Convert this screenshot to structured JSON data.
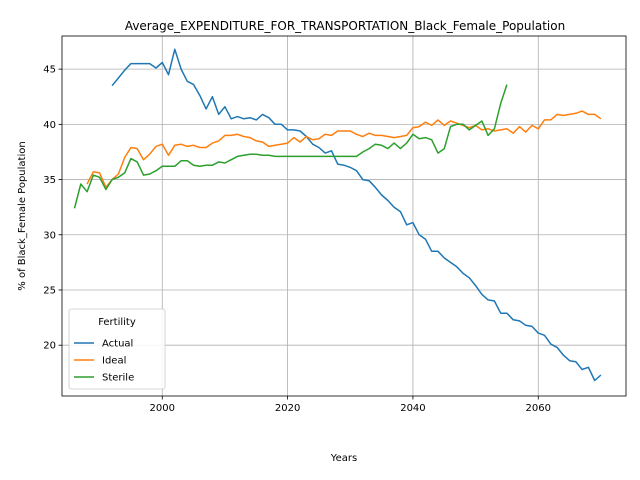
{
  "chart_data": {
    "type": "line",
    "title": "Average_EXPENDITURE_FOR_TRANSPORTATION_Black_Female_Population",
    "xlabel": "Years",
    "ylabel": "% of Black_Female Population",
    "xlim": [
      1984,
      2074
    ],
    "ylim": [
      15.4,
      48.0
    ],
    "xticks": [
      2000,
      2020,
      2040,
      2060
    ],
    "yticks": [
      20,
      25,
      30,
      35,
      40,
      45
    ],
    "grid": true,
    "legend": {
      "title": "Fertility",
      "position": "lower-left"
    },
    "series": [
      {
        "name": "Actual",
        "color": "#1f77b4",
        "x": [
          1992,
          1993,
          1994,
          1995,
          1996,
          1997,
          1998,
          1999,
          2000,
          2001,
          2002,
          2003,
          2004,
          2005,
          2006,
          2007,
          2008,
          2009,
          2010,
          2011,
          2012,
          2013,
          2014,
          2015,
          2016,
          2017,
          2018,
          2019,
          2020,
          2021,
          2022,
          2023,
          2024,
          2025,
          2026,
          2027,
          2028,
          2029,
          2030,
          2031,
          2032,
          2033,
          2034,
          2035,
          2036,
          2037,
          2038,
          2039,
          2040,
          2041,
          2042,
          2043,
          2044,
          2045,
          2046,
          2047,
          2048,
          2049,
          2050,
          2051,
          2052,
          2053,
          2054,
          2055,
          2056,
          2057,
          2058,
          2059,
          2060,
          2061,
          2062,
          2063,
          2064,
          2065,
          2066,
          2067,
          2068,
          2069,
          2070
        ],
        "y": [
          43.5,
          44.2,
          44.9,
          45.5,
          45.5,
          45.5,
          45.5,
          45.1,
          45.6,
          44.5,
          46.8,
          45.0,
          43.9,
          43.6,
          42.6,
          41.4,
          42.5,
          40.9,
          41.6,
          40.5,
          40.7,
          40.5,
          40.6,
          40.4,
          40.9,
          40.6,
          40.0,
          40.0,
          39.5,
          39.5,
          39.4,
          38.9,
          38.2,
          37.9,
          37.4,
          37.6,
          36.4,
          36.3,
          36.1,
          35.8,
          35.0,
          34.9,
          34.3,
          33.6,
          33.1,
          32.5,
          32.1,
          30.9,
          31.1,
          30.0,
          29.6,
          28.5,
          28.5,
          27.9,
          27.5,
          27.1,
          26.5,
          26.1,
          25.4,
          24.6,
          24.1,
          24.0,
          22.9,
          22.9,
          22.3,
          22.2,
          21.8,
          21.7,
          21.1,
          20.9,
          20.1,
          19.8,
          19.1,
          18.6,
          18.5,
          17.8,
          18.0,
          16.8,
          17.3
        ]
      },
      {
        "name": "Ideal",
        "color": "#ff7f0e",
        "x": [
          1988,
          1989,
          1990,
          1991,
          1992,
          1993,
          1994,
          1995,
          1996,
          1997,
          1998,
          1999,
          2000,
          2001,
          2002,
          2003,
          2004,
          2005,
          2006,
          2007,
          2008,
          2009,
          2010,
          2011,
          2012,
          2013,
          2014,
          2015,
          2016,
          2017,
          2018,
          2019,
          2020,
          2021,
          2022,
          2023,
          2024,
          2025,
          2026,
          2027,
          2028,
          2029,
          2030,
          2031,
          2032,
          2033,
          2034,
          2035,
          2036,
          2037,
          2038,
          2039,
          2040,
          2041,
          2042,
          2043,
          2044,
          2045,
          2046,
          2047,
          2048,
          2049,
          2050,
          2051,
          2052,
          2053,
          2054,
          2055,
          2056,
          2057,
          2058,
          2059,
          2060,
          2061,
          2062,
          2063,
          2064,
          2065,
          2066,
          2067,
          2068,
          2069,
          2070
        ],
        "y": [
          34.6,
          35.7,
          35.6,
          34.3,
          35.0,
          35.5,
          37.0,
          37.9,
          37.8,
          36.8,
          37.3,
          38.0,
          38.2,
          37.2,
          38.1,
          38.2,
          38.0,
          38.1,
          37.9,
          37.9,
          38.3,
          38.5,
          39.0,
          39.0,
          39.1,
          38.9,
          38.8,
          38.5,
          38.4,
          38.0,
          38.1,
          38.2,
          38.3,
          38.8,
          38.4,
          38.9,
          38.6,
          38.7,
          39.1,
          39.0,
          39.4,
          39.4,
          39.4,
          39.1,
          38.9,
          39.2,
          39.0,
          39.0,
          38.9,
          38.8,
          38.9,
          39.0,
          39.7,
          39.8,
          40.2,
          39.9,
          40.4,
          39.9,
          40.3,
          40.1,
          39.9,
          39.7,
          39.9,
          39.5,
          39.6,
          39.4,
          39.5,
          39.6,
          39.2,
          39.8,
          39.3,
          39.9,
          39.6,
          40.4,
          40.4,
          40.9,
          40.8,
          40.9,
          41.0,
          41.2,
          40.9,
          40.9,
          40.5
        ]
      },
      {
        "name": "Sterile",
        "color": "#2ca02c",
        "x": [
          1986,
          1987,
          1988,
          1989,
          1990,
          1991,
          1992,
          1993,
          1994,
          1995,
          1996,
          1997,
          1998,
          1999,
          2000,
          2001,
          2002,
          2003,
          2004,
          2005,
          2006,
          2007,
          2008,
          2009,
          2010,
          2011,
          2012,
          2013,
          2014,
          2015,
          2016,
          2017,
          2018,
          2019,
          2020,
          2021,
          2022,
          2023,
          2024,
          2025,
          2026,
          2027,
          2028,
          2029,
          2030,
          2031,
          2032,
          2033,
          2034,
          2035,
          2036,
          2037,
          2038,
          2039,
          2040,
          2041,
          2042,
          2043,
          2044,
          2045,
          2046,
          2047,
          2048,
          2049,
          2050,
          2051,
          2052,
          2053,
          2054,
          2055
        ],
        "y": [
          32.4,
          34.6,
          33.9,
          35.4,
          35.2,
          34.1,
          35.0,
          35.2,
          35.6,
          36.9,
          36.6,
          35.4,
          35.5,
          35.8,
          36.2,
          36.2,
          36.2,
          36.7,
          36.7,
          36.3,
          36.2,
          36.3,
          36.3,
          36.6,
          36.5,
          36.8,
          37.1,
          37.2,
          37.3,
          37.3,
          37.2,
          37.2,
          37.1,
          37.1,
          37.1,
          37.1,
          37.1,
          37.1,
          37.1,
          37.1,
          37.1,
          37.1,
          37.1,
          37.1,
          37.1,
          37.1,
          37.5,
          37.8,
          38.2,
          38.1,
          37.8,
          38.3,
          37.8,
          38.3,
          39.1,
          38.7,
          38.8,
          38.6,
          37.4,
          37.8,
          39.8,
          40.0,
          40.0,
          39.5,
          39.9,
          40.3,
          39.0,
          39.6,
          41.9,
          43.6
        ]
      }
    ]
  }
}
